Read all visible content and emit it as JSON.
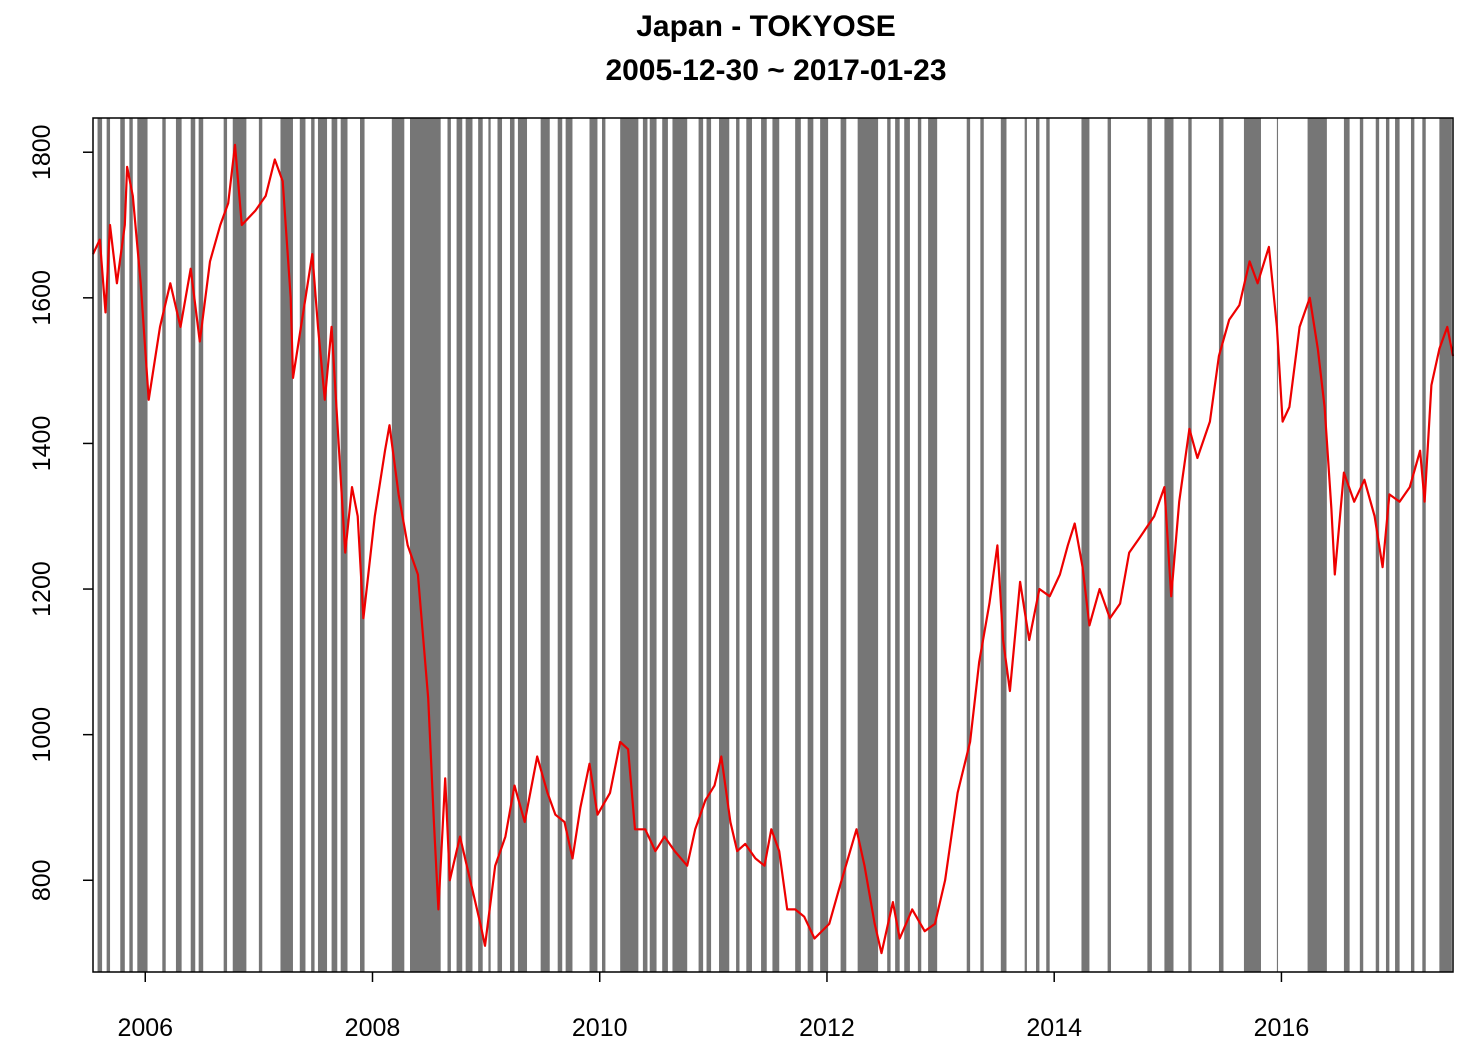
{
  "chart_data": {
    "type": "line",
    "title": "Japan - TOKYOSE",
    "subtitle": "2005-12-30 ~ 2017-01-23",
    "color": "#ee0000",
    "shade_color": "#767676",
    "xlim": [
      2005.54,
      2017.51
    ],
    "ylim": [
      674,
      1847
    ],
    "xticks": [
      2006,
      2008,
      2010,
      2012,
      2014,
      2016
    ],
    "yticks": [
      800,
      1000,
      1200,
      1400,
      1600,
      1800
    ],
    "x": [
      2005.54,
      2005.6,
      2005.65,
      2005.69,
      2005.75,
      2005.82,
      2005.84,
      2005.89,
      2005.96,
      2006.03,
      2006.13,
      2006.22,
      2006.31,
      2006.4,
      2006.48,
      2006.57,
      2006.66,
      2006.73,
      2006.79,
      2006.85,
      2006.97,
      2007.06,
      2007.14,
      2007.21,
      2007.28,
      2007.3,
      2007.41,
      2007.47,
      2007.52,
      2007.58,
      2007.64,
      2007.71,
      2007.76,
      2007.82,
      2007.87,
      2007.92,
      2008.02,
      2008.11,
      2008.15,
      2008.23,
      2008.31,
      2008.4,
      2008.49,
      2008.54,
      2008.58,
      2008.64,
      2008.68,
      2008.77,
      2008.86,
      2008.95,
      2008.99,
      2009.08,
      2009.17,
      2009.25,
      2009.34,
      2009.45,
      2009.54,
      2009.61,
      2009.69,
      2009.76,
      2009.83,
      2009.91,
      2009.98,
      2010.09,
      2010.18,
      2010.25,
      2010.31,
      2010.4,
      2010.49,
      2010.57,
      2010.66,
      2010.77,
      2010.84,
      2010.93,
      2011.01,
      2011.07,
      2011.15,
      2011.21,
      2011.28,
      2011.37,
      2011.45,
      2011.51,
      2011.58,
      2011.65,
      2011.72,
      2011.8,
      2011.89,
      2012.02,
      2012.11,
      2012.26,
      2012.33,
      2012.42,
      2012.48,
      2012.58,
      2012.64,
      2012.75,
      2012.86,
      2012.95,
      2013.04,
      2013.15,
      2013.26,
      2013.34,
      2013.43,
      2013.5,
      2013.55,
      2013.61,
      2013.7,
      2013.78,
      2013.87,
      2013.96,
      2014.05,
      2014.12,
      2014.18,
      2014.25,
      2014.31,
      2014.4,
      2014.49,
      2014.58,
      2014.66,
      2014.75,
      2014.88,
      2014.97,
      2015.03,
      2015.1,
      2015.19,
      2015.26,
      2015.37,
      2015.45,
      2015.54,
      2015.63,
      2015.72,
      2015.79,
      2015.89,
      2015.96,
      2016.01,
      2016.07,
      2016.16,
      2016.25,
      2016.32,
      2016.38,
      2016.44,
      2016.47,
      2016.55,
      2016.64,
      2016.73,
      2016.82,
      2016.89,
      2016.95,
      2017.04,
      2017.13,
      2017.22,
      2017.26,
      2017.32,
      2017.39,
      2017.46,
      2017.51
    ],
    "values": [
      1660,
      1680,
      1580,
      1700,
      1620,
      1700,
      1780,
      1740,
      1620,
      1460,
      1560,
      1620,
      1560,
      1640,
      1540,
      1650,
      1700,
      1730,
      1810,
      1700,
      1720,
      1740,
      1790,
      1760,
      1600,
      1490,
      1600,
      1660,
      1560,
      1460,
      1560,
      1380,
      1250,
      1340,
      1300,
      1160,
      1300,
      1390,
      1425,
      1330,
      1260,
      1220,
      1050,
      880,
      760,
      940,
      800,
      860,
      800,
      740,
      710,
      820,
      860,
      930,
      880,
      970,
      920,
      890,
      880,
      830,
      900,
      960,
      890,
      920,
      990,
      980,
      870,
      870,
      840,
      860,
      840,
      820,
      870,
      910,
      930,
      970,
      880,
      840,
      850,
      830,
      820,
      870,
      840,
      760,
      760,
      750,
      720,
      740,
      790,
      870,
      820,
      740,
      700,
      770,
      720,
      760,
      730,
      740,
      800,
      920,
      990,
      1100,
      1180,
      1260,
      1130,
      1060,
      1210,
      1130,
      1200,
      1190,
      1220,
      1260,
      1290,
      1230,
      1150,
      1200,
      1160,
      1180,
      1250,
      1270,
      1300,
      1340,
      1190,
      1320,
      1420,
      1380,
      1430,
      1520,
      1570,
      1590,
      1650,
      1620,
      1670,
      1560,
      1430,
      1450,
      1560,
      1600,
      1530,
      1450,
      1310,
      1220,
      1360,
      1320,
      1350,
      1300,
      1230,
      1330,
      1320,
      1340,
      1390,
      1320,
      1480,
      1530,
      1560,
      1520
    ],
    "shaded_periods": [
      [
        2005.58,
        2005.62
      ],
      [
        2005.66,
        2005.69
      ],
      [
        2005.78,
        2005.82
      ],
      [
        2005.86,
        2005.89
      ],
      [
        2005.93,
        2006.02
      ],
      [
        2006.15,
        2006.18
      ],
      [
        2006.27,
        2006.32
      ],
      [
        2006.4,
        2006.44
      ],
      [
        2006.47,
        2006.51
      ],
      [
        2006.69,
        2006.72
      ],
      [
        2006.77,
        2006.89
      ],
      [
        2007.0,
        2007.03
      ],
      [
        2007.19,
        2007.3
      ],
      [
        2007.36,
        2007.41
      ],
      [
        2007.46,
        2007.49
      ],
      [
        2007.52,
        2007.6
      ],
      [
        2007.64,
        2007.69
      ],
      [
        2007.72,
        2007.78
      ],
      [
        2007.89,
        2007.93
      ],
      [
        2008.17,
        2008.28
      ],
      [
        2008.33,
        2008.6
      ],
      [
        2008.66,
        2008.69
      ],
      [
        2008.74,
        2008.79
      ],
      [
        2008.82,
        2008.88
      ],
      [
        2008.93,
        2008.97
      ],
      [
        2009.02,
        2009.04
      ],
      [
        2009.1,
        2009.14
      ],
      [
        2009.21,
        2009.25
      ],
      [
        2009.28,
        2009.36
      ],
      [
        2009.48,
        2009.56
      ],
      [
        2009.63,
        2009.67
      ],
      [
        2009.7,
        2009.76
      ],
      [
        2009.91,
        2009.98
      ],
      [
        2010.02,
        2010.05
      ],
      [
        2010.18,
        2010.34
      ],
      [
        2010.38,
        2010.42
      ],
      [
        2010.44,
        2010.5
      ],
      [
        2010.55,
        2010.6
      ],
      [
        2010.64,
        2010.77
      ],
      [
        2010.87,
        2010.91
      ],
      [
        2010.94,
        2010.98
      ],
      [
        2011.05,
        2011.14
      ],
      [
        2011.2,
        2011.23
      ],
      [
        2011.29,
        2011.34
      ],
      [
        2011.42,
        2011.47
      ],
      [
        2011.52,
        2011.58
      ],
      [
        2011.72,
        2011.77
      ],
      [
        2011.83,
        2011.88
      ],
      [
        2011.94,
        2012.01
      ],
      [
        2012.12,
        2012.17
      ],
      [
        2012.27,
        2012.45
      ],
      [
        2012.53,
        2012.56
      ],
      [
        2012.6,
        2012.64
      ],
      [
        2012.68,
        2012.73
      ],
      [
        2012.8,
        2012.83
      ],
      [
        2012.89,
        2012.97
      ],
      [
        2013.23,
        2013.26
      ],
      [
        2013.35,
        2013.38
      ],
      [
        2013.53,
        2013.58
      ],
      [
        2013.74,
        2013.76
      ],
      [
        2013.84,
        2013.87
      ],
      [
        2013.93,
        2013.96
      ],
      [
        2014.24,
        2014.31
      ],
      [
        2014.47,
        2014.5
      ],
      [
        2014.82,
        2014.86
      ],
      [
        2014.97,
        2015.05
      ],
      [
        2015.18,
        2015.21
      ],
      [
        2015.45,
        2015.49
      ],
      [
        2015.67,
        2015.82
      ],
      [
        2015.96,
        2015.97
      ],
      [
        2016.23,
        2016.4
      ],
      [
        2016.55,
        2016.6
      ],
      [
        2016.69,
        2016.72
      ],
      [
        2016.83,
        2016.86
      ],
      [
        2016.92,
        2016.95
      ],
      [
        2017.0,
        2017.04
      ],
      [
        2017.14,
        2017.17
      ],
      [
        2017.24,
        2017.27
      ],
      [
        2017.39,
        2017.5
      ]
    ]
  }
}
